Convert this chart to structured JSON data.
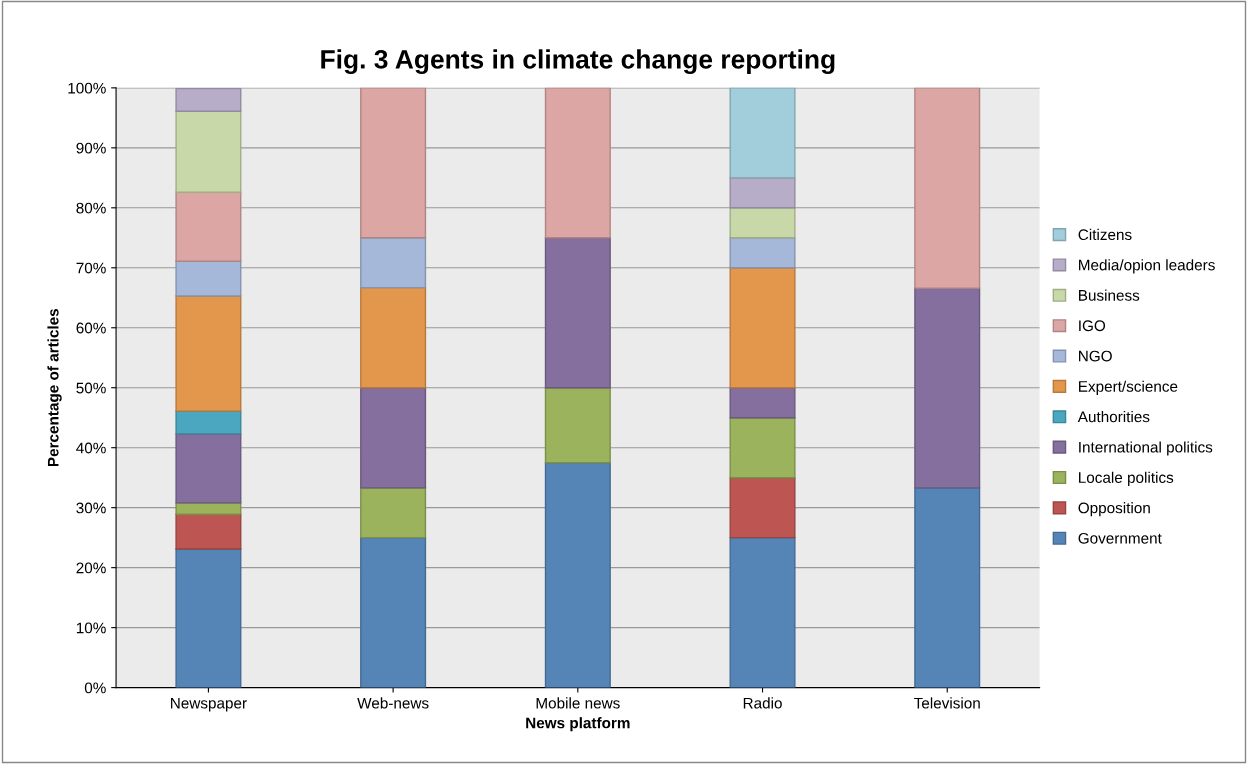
{
  "chart_data": {
    "type": "bar",
    "title": "Fig. 3 Agents in climate change reporting",
    "xlabel": "News platform",
    "ylabel": "Percentage of articles",
    "categories": [
      "Newspaper",
      "Web-news",
      "Mobile news",
      "Radio",
      "Television"
    ],
    "stacked": true,
    "ylim": [
      0,
      100
    ],
    "yticks": [
      {
        "value": 0,
        "label": "0%"
      },
      {
        "value": 10,
        "label": "10%"
      },
      {
        "value": 20,
        "label": "20%"
      },
      {
        "value": 30,
        "label": "30%"
      },
      {
        "value": 40,
        "label": "40%"
      },
      {
        "value": 50,
        "label": "50%"
      },
      {
        "value": 60,
        "label": "60%"
      },
      {
        "value": 70,
        "label": "70%"
      },
      {
        "value": 80,
        "label": "80%"
      },
      {
        "value": 90,
        "label": "90%"
      },
      {
        "value": 100,
        "label": "100%"
      }
    ],
    "grid": "y",
    "legend": "right",
    "series": [
      {
        "name": "Government",
        "color": "#5485b6",
        "values": [
          23.1,
          25,
          37.5,
          25,
          33.3
        ]
      },
      {
        "name": "Opposition",
        "color": "#bd5652",
        "values": [
          5.8,
          null,
          null,
          10,
          null
        ]
      },
      {
        "name": "Locale politics",
        "color": "#9ab35c",
        "values": [
          1.9,
          8.3,
          12.5,
          10,
          null
        ]
      },
      {
        "name": "International politics",
        "color": "#846f9e",
        "values": [
          11.5,
          16.7,
          25,
          5,
          33.3
        ]
      },
      {
        "name": "Authorities",
        "color": "#4aa7bf",
        "values": [
          3.8,
          null,
          null,
          null,
          null
        ]
      },
      {
        "name": "Expert/science",
        "color": "#e3974d",
        "values": [
          19.2,
          16.7,
          null,
          20,
          null
        ]
      },
      {
        "name": "NGO",
        "color": "#a6b8d9",
        "values": [
          5.8,
          8.3,
          null,
          5,
          null
        ]
      },
      {
        "name": "IGO",
        "color": "#dba6a4",
        "values": [
          11.5,
          25,
          25,
          null,
          33.4
        ]
      },
      {
        "name": "Business",
        "color": "#c8d8a9",
        "values": [
          13.5,
          null,
          null,
          5,
          null
        ]
      },
      {
        "name": "Media/opion leaders",
        "color": "#b8adc9",
        "values": [
          3.8,
          null,
          null,
          5,
          null
        ]
      },
      {
        "name": "Citizens",
        "color": "#a2cddb",
        "values": [
          null,
          null,
          null,
          15,
          null
        ]
      }
    ]
  }
}
